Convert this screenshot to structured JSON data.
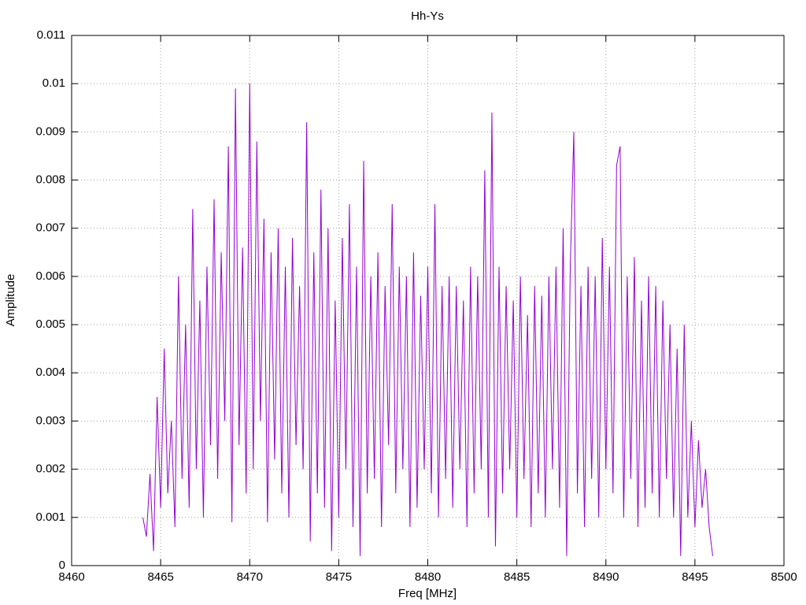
{
  "chart_data": {
    "type": "line",
    "title": "Hh-Ys",
    "x_label": "Freq [MHz]",
    "y_label": "Amplitude",
    "color": "#9400d3",
    "grid": true,
    "xlim": [
      8460,
      8500
    ],
    "xticks": [
      8460,
      8465,
      8470,
      8475,
      8480,
      8485,
      8490,
      8495,
      8500
    ],
    "ylim": [
      0,
      0.011
    ],
    "yticks": [
      0,
      0.001,
      0.002,
      0.003,
      0.004,
      0.005,
      0.006,
      0.007,
      0.008,
      0.009,
      0.01,
      0.011
    ],
    "x": [
      8464.0,
      8464.2,
      8464.4,
      8464.6,
      8464.8,
      8465.0,
      8465.2,
      8465.4,
      8465.6,
      8465.8,
      8466.0,
      8466.2,
      8466.4,
      8466.6,
      8466.8,
      8467.0,
      8467.2,
      8467.4,
      8467.6,
      8467.8,
      8468.0,
      8468.2,
      8468.4,
      8468.6,
      8468.8,
      8469.0,
      8469.2,
      8469.4,
      8469.6,
      8469.8,
      8470.0,
      8470.2,
      8470.4,
      8470.6,
      8470.8,
      8471.0,
      8471.2,
      8471.4,
      8471.6,
      8471.8,
      8472.0,
      8472.2,
      8472.4,
      8472.6,
      8472.8,
      8473.0,
      8473.2,
      8473.4,
      8473.6,
      8473.8,
      8474.0,
      8474.2,
      8474.4,
      8474.6,
      8474.8,
      8475.0,
      8475.2,
      8475.4,
      8475.6,
      8475.8,
      8476.0,
      8476.2,
      8476.4,
      8476.6,
      8476.8,
      8477.0,
      8477.2,
      8477.4,
      8477.6,
      8477.8,
      8478.0,
      8478.2,
      8478.4,
      8478.6,
      8478.8,
      8479.0,
      8479.2,
      8479.4,
      8479.6,
      8479.8,
      8480.0,
      8480.2,
      8480.4,
      8480.6,
      8480.8,
      8481.0,
      8481.2,
      8481.4,
      8481.6,
      8481.8,
      8482.0,
      8482.2,
      8482.4,
      8482.6,
      8482.8,
      8483.0,
      8483.2,
      8483.4,
      8483.6,
      8483.8,
      8484.0,
      8484.2,
      8484.4,
      8484.6,
      8484.8,
      8485.0,
      8485.2,
      8485.4,
      8485.6,
      8485.8,
      8486.0,
      8486.2,
      8486.4,
      8486.6,
      8486.8,
      8487.0,
      8487.2,
      8487.4,
      8487.6,
      8487.8,
      8488.0,
      8488.2,
      8488.4,
      8488.6,
      8488.8,
      8489.0,
      8489.2,
      8489.4,
      8489.6,
      8489.8,
      8490.0,
      8490.2,
      8490.4,
      8490.6,
      8490.8,
      8491.0,
      8491.2,
      8491.4,
      8491.6,
      8491.8,
      8492.0,
      8492.2,
      8492.4,
      8492.6,
      8492.8,
      8493.0,
      8493.2,
      8493.4,
      8493.6,
      8493.8,
      8494.0,
      8494.2,
      8494.4,
      8494.6,
      8494.8,
      8495.0,
      8495.2,
      8495.4,
      8495.6,
      8495.8,
      8496.0
    ],
    "values": [
      0.001,
      0.0006,
      0.0019,
      0.0003,
      0.0035,
      0.0012,
      0.0045,
      0.0015,
      0.003,
      0.0008,
      0.006,
      0.0018,
      0.005,
      0.0012,
      0.0074,
      0.002,
      0.0055,
      0.001,
      0.0062,
      0.0025,
      0.0076,
      0.0018,
      0.0065,
      0.003,
      0.0087,
      0.0009,
      0.0099,
      0.0025,
      0.0066,
      0.0015,
      0.01,
      0.002,
      0.0088,
      0.003,
      0.0072,
      0.0009,
      0.0065,
      0.0022,
      0.007,
      0.0015,
      0.0062,
      0.001,
      0.0068,
      0.0025,
      0.0058,
      0.002,
      0.0092,
      0.0005,
      0.0065,
      0.0015,
      0.0078,
      0.0012,
      0.007,
      0.0003,
      0.0055,
      0.001,
      0.0068,
      0.002,
      0.0075,
      0.0008,
      0.0062,
      0.0002,
      0.0084,
      0.0015,
      0.006,
      0.0018,
      0.0065,
      0.0008,
      0.0058,
      0.0025,
      0.0075,
      0.0015,
      0.0062,
      0.002,
      0.006,
      0.0008,
      0.0065,
      0.0012,
      0.0056,
      0.002,
      0.0062,
      0.0015,
      0.0075,
      0.001,
      0.0058,
      0.0018,
      0.006,
      0.0012,
      0.0058,
      0.002,
      0.0055,
      0.0008,
      0.0062,
      0.0015,
      0.006,
      0.002,
      0.0082,
      0.001,
      0.0094,
      0.0004,
      0.0062,
      0.0015,
      0.0058,
      0.002,
      0.0055,
      0.001,
      0.006,
      0.0018,
      0.0052,
      0.0008,
      0.0058,
      0.0015,
      0.0056,
      0.001,
      0.006,
      0.002,
      0.0062,
      0.0012,
      0.007,
      0.0002,
      0.0062,
      0.009,
      0.0015,
      0.0058,
      0.0008,
      0.0062,
      0.0018,
      0.006,
      0.001,
      0.0068,
      0.002,
      0.0062,
      0.0015,
      0.0083,
      0.0087,
      0.001,
      0.006,
      0.0018,
      0.0064,
      0.0008,
      0.0055,
      0.0012,
      0.006,
      0.0015,
      0.0058,
      0.001,
      0.0055,
      0.0018,
      0.005,
      0.001,
      0.0045,
      0.0002,
      0.005,
      0.001,
      0.003,
      0.0008,
      0.0026,
      0.0012,
      0.002,
      0.0008,
      0.0002
    ]
  }
}
